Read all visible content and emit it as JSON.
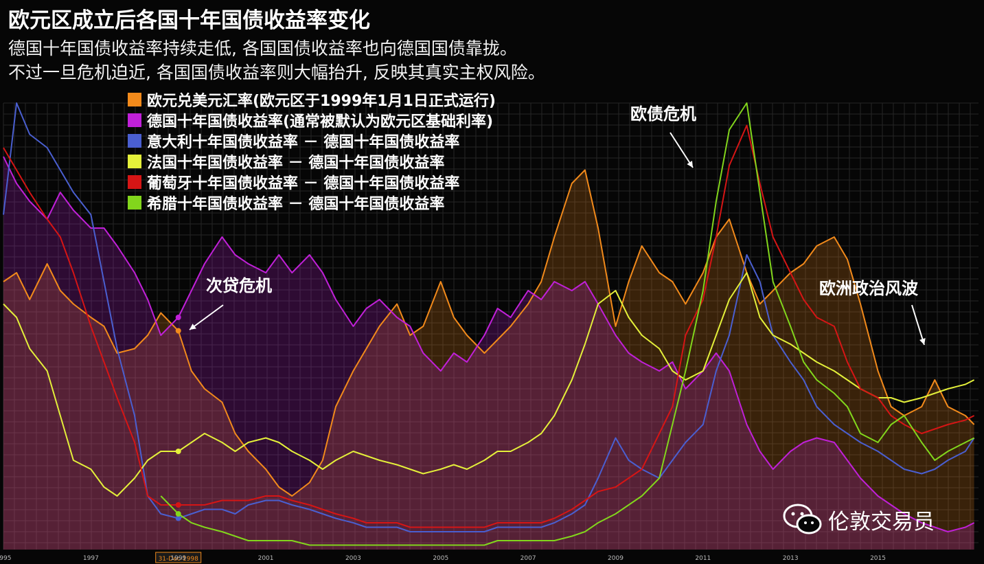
{
  "title": "欧元区成立后各国十年国债收益率变化",
  "subtitle_line1": "德国十年国债收益率持续走低, 各国国债收益率也向德国国债靠拢。",
  "subtitle_line2": "不过一旦危机迫近, 各国国债收益率则大幅抬升, 反映其真实主权风险。",
  "annotations": {
    "subprime": "次贷危机",
    "euro_debt": "欧债危机",
    "europe_politics": "欧洲政治风波"
  },
  "watermark": "伦敦交易员",
  "x_highlight_label": "31-Dec-1998",
  "chart_data": {
    "type": "line",
    "x_range": [
      1995.0,
      2017.3
    ],
    "y_range": [
      0,
      100
    ],
    "y_axis": "normalized (no axis labels shown)",
    "grid": true,
    "legend_position": "top-left",
    "x_ticks": [
      "1995",
      "1997",
      "1999",
      "2001",
      "2003",
      "2005",
      "2007",
      "2009",
      "2011",
      "2013",
      "2015"
    ],
    "x_tick_values": [
      1995,
      1997,
      1999,
      2001,
      2003,
      2005,
      2007,
      2009,
      2011,
      2013,
      2015
    ],
    "x": [
      1995.0,
      1995.3,
      1995.6,
      1996.0,
      1996.3,
      1996.6,
      1997.0,
      1997.3,
      1997.6,
      1998.0,
      1998.3,
      1998.6,
      1999.0,
      1999.3,
      1999.6,
      2000.0,
      2000.3,
      2000.6,
      2001.0,
      2001.3,
      2001.6,
      2002.0,
      2002.3,
      2002.6,
      2003.0,
      2003.3,
      2003.6,
      2004.0,
      2004.3,
      2004.6,
      2005.0,
      2005.3,
      2005.6,
      2006.0,
      2006.3,
      2006.6,
      2007.0,
      2007.3,
      2007.6,
      2008.0,
      2008.3,
      2008.6,
      2009.0,
      2009.3,
      2009.6,
      2010.0,
      2010.3,
      2010.6,
      2011.0,
      2011.3,
      2011.6,
      2012.0,
      2012.3,
      2012.6,
      2013.0,
      2013.3,
      2013.6,
      2014.0,
      2014.3,
      2014.6,
      2015.0,
      2015.3,
      2015.6,
      2016.0,
      2016.3,
      2016.6,
      2017.0,
      2017.2
    ],
    "series": [
      {
        "name": "欧元兑美元汇率(欧元区于1999年1月1日正式运行)",
        "color": "#f28a1b",
        "fill": true,
        "values": [
          60,
          62,
          56,
          64,
          58,
          55,
          52,
          50,
          44,
          45,
          48,
          53,
          49,
          40,
          36,
          33,
          26,
          22,
          18,
          14,
          12,
          15,
          20,
          32,
          40,
          45,
          50,
          55,
          48,
          50,
          60,
          52,
          48,
          44,
          47,
          50,
          55,
          60,
          70,
          82,
          85,
          72,
          50,
          60,
          68,
          62,
          60,
          55,
          62,
          70,
          74,
          62,
          55,
          58,
          62,
          64,
          68,
          70,
          65,
          55,
          40,
          32,
          30,
          32,
          38,
          32,
          30,
          28
        ]
      },
      {
        "name": "德国十年国债收益率(通常被默认为欧元区基础利率)",
        "color": "#c020d8",
        "fill": true,
        "values": [
          88,
          82,
          78,
          74,
          80,
          76,
          72,
          72,
          68,
          62,
          56,
          48,
          52,
          58,
          64,
          70,
          66,
          64,
          62,
          66,
          62,
          66,
          62,
          56,
          50,
          54,
          56,
          52,
          50,
          44,
          40,
          44,
          42,
          48,
          54,
          52,
          58,
          56,
          60,
          58,
          60,
          55,
          48,
          44,
          42,
          40,
          42,
          36,
          40,
          44,
          40,
          28,
          22,
          18,
          22,
          24,
          25,
          24,
          20,
          16,
          12,
          10,
          8,
          6,
          5,
          4,
          5,
          6
        ]
      },
      {
        "name": "意大利十年国债收益率 － 德国十年国债收益率",
        "color": "#4a5fd0",
        "fill": false,
        "values": [
          75,
          100,
          93,
          90,
          85,
          80,
          75,
          60,
          45,
          30,
          12,
          8,
          7,
          8,
          9,
          9,
          8,
          10,
          11,
          11,
          10,
          9,
          8,
          7,
          6,
          5,
          5,
          5,
          4,
          4,
          4,
          4,
          4,
          4,
          5,
          5,
          5,
          5,
          6,
          8,
          10,
          16,
          25,
          20,
          18,
          16,
          20,
          24,
          28,
          40,
          48,
          66,
          60,
          48,
          42,
          38,
          32,
          28,
          26,
          24,
          22,
          20,
          18,
          17,
          18,
          20,
          22,
          25
        ]
      },
      {
        "name": "法国十年国债收益率 － 德国十年国债收益率",
        "color": "#e4f03a",
        "fill": false,
        "values": [
          55,
          52,
          45,
          40,
          30,
          20,
          18,
          14,
          12,
          16,
          20,
          22,
          22,
          24,
          26,
          24,
          22,
          24,
          25,
          24,
          22,
          20,
          18,
          20,
          22,
          21,
          20,
          19,
          18,
          17,
          18,
          19,
          18,
          20,
          22,
          22,
          24,
          26,
          30,
          38,
          46,
          55,
          58,
          52,
          48,
          45,
          40,
          38,
          40,
          48,
          56,
          62,
          52,
          48,
          46,
          44,
          42,
          40,
          38,
          36,
          34,
          34,
          33,
          34,
          35,
          36,
          37,
          38
        ]
      },
      {
        "name": "葡萄牙十年国债收益率 － 德国十年国债收益率",
        "color": "#d61515",
        "fill": false,
        "values": [
          90,
          85,
          80,
          74,
          70,
          62,
          50,
          42,
          34,
          24,
          12,
          10,
          10,
          10,
          10,
          11,
          11,
          11,
          12,
          12,
          11,
          10,
          9,
          8,
          7,
          6,
          6,
          6,
          5,
          5,
          5,
          5,
          5,
          5,
          6,
          6,
          6,
          6,
          7,
          9,
          11,
          13,
          14,
          16,
          18,
          26,
          32,
          48,
          56,
          70,
          86,
          95,
          82,
          70,
          62,
          56,
          52,
          50,
          42,
          36,
          34,
          30,
          28,
          26,
          27,
          28,
          29,
          30
        ]
      },
      {
        "name": "希腊十年国债收益率 － 德国十年国债收益率",
        "color": "#82d61c",
        "fill": false,
        "values": [
          null,
          null,
          null,
          null,
          null,
          null,
          null,
          null,
          null,
          null,
          null,
          12,
          8,
          6,
          5,
          4,
          3,
          2,
          2,
          2,
          2,
          1,
          1,
          1,
          1,
          1,
          1,
          1,
          1,
          1,
          1,
          1,
          1,
          1,
          2,
          2,
          2,
          2,
          2,
          3,
          4,
          6,
          8,
          10,
          12,
          16,
          28,
          40,
          58,
          78,
          94,
          100,
          80,
          60,
          50,
          42,
          38,
          35,
          32,
          26,
          24,
          28,
          30,
          24,
          20,
          22,
          24,
          25
        ]
      }
    ]
  }
}
